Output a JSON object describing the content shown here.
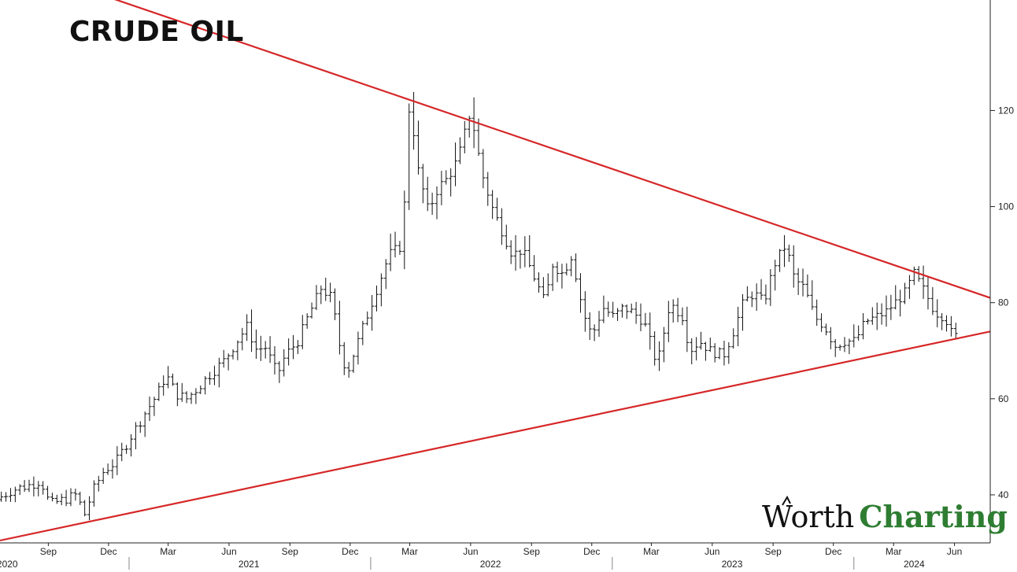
{
  "chart_data": {
    "type": "ohlc",
    "title": "CRUDE OIL",
    "y_axis": {
      "position": "right",
      "ticks": [
        40,
        60,
        80,
        100,
        120
      ],
      "ylim": [
        30,
        143
      ]
    },
    "x_axis": {
      "month_ticks": [
        {
          "label": "Sep",
          "date": "2020-09-01"
        },
        {
          "label": "Dec",
          "date": "2020-12-01"
        },
        {
          "label": "Mar",
          "date": "2021-03-01"
        },
        {
          "label": "Jun",
          "date": "2021-06-01"
        },
        {
          "label": "Sep",
          "date": "2021-09-01"
        },
        {
          "label": "Dec",
          "date": "2021-12-01"
        },
        {
          "label": "Mar",
          "date": "2022-03-01"
        },
        {
          "label": "Jun",
          "date": "2022-06-01"
        },
        {
          "label": "Sep",
          "date": "2022-09-01"
        },
        {
          "label": "Dec",
          "date": "2022-12-01"
        },
        {
          "label": "Mar",
          "date": "2023-03-01"
        },
        {
          "label": "Jun",
          "date": "2023-06-01"
        },
        {
          "label": "Sep",
          "date": "2023-09-01"
        },
        {
          "label": "Dec",
          "date": "2023-12-01"
        },
        {
          "label": "Mar",
          "date": "2024-03-01"
        },
        {
          "label": "Jun",
          "date": "2024-06-01"
        }
      ],
      "years": [
        {
          "label": "2020",
          "date": "2020-07-01"
        },
        {
          "label": "2021",
          "date": "2021-07-01"
        },
        {
          "label": "2022",
          "date": "2022-07-01"
        },
        {
          "label": "2023",
          "date": "2023-07-01"
        },
        {
          "label": "2024",
          "date": "2024-04-01"
        }
      ],
      "xlim": [
        "2020-06-20",
        "2024-07-25"
      ]
    },
    "price_points": [
      [
        "2020-06-22",
        39
      ],
      [
        "2020-07-15",
        41
      ],
      [
        "2020-08-10",
        42
      ],
      [
        "2020-08-28",
        43
      ],
      [
        "2020-09-10",
        38
      ],
      [
        "2020-10-01",
        39
      ],
      [
        "2020-10-20",
        40
      ],
      [
        "2020-11-02",
        36
      ],
      [
        "2020-11-15",
        41
      ],
      [
        "2020-12-01",
        45
      ],
      [
        "2020-12-20",
        47
      ],
      [
        "2021-01-10",
        52
      ],
      [
        "2021-02-01",
        57
      ],
      [
        "2021-02-20",
        61
      ],
      [
        "2021-03-05",
        65
      ],
      [
        "2021-03-20",
        61
      ],
      [
        "2021-04-05",
        60
      ],
      [
        "2021-04-20",
        62
      ],
      [
        "2021-05-10",
        65
      ],
      [
        "2021-06-01",
        68
      ],
      [
        "2021-06-20",
        72
      ],
      [
        "2021-07-05",
        75
      ],
      [
        "2021-07-20",
        70
      ],
      [
        "2021-08-01",
        71
      ],
      [
        "2021-08-20",
        65
      ],
      [
        "2021-09-01",
        69
      ],
      [
        "2021-09-20",
        72
      ],
      [
        "2021-10-05",
        77
      ],
      [
        "2021-10-25",
        83
      ],
      [
        "2021-11-10",
        81
      ],
      [
        "2021-11-26",
        68
      ],
      [
        "2021-12-05",
        66
      ],
      [
        "2021-12-25",
        74
      ],
      [
        "2022-01-15",
        82
      ],
      [
        "2022-02-05",
        90
      ],
      [
        "2022-02-25",
        92
      ],
      [
        "2022-03-08",
        123
      ],
      [
        "2022-03-20",
        108
      ],
      [
        "2022-04-05",
        99
      ],
      [
        "2022-04-20",
        104
      ],
      [
        "2022-05-05",
        106
      ],
      [
        "2022-05-20",
        110
      ],
      [
        "2022-06-08",
        120
      ],
      [
        "2022-06-25",
        107
      ],
      [
        "2022-07-10",
        100
      ],
      [
        "2022-07-25",
        95
      ],
      [
        "2022-08-10",
        90
      ],
      [
        "2022-08-25",
        91
      ],
      [
        "2022-09-10",
        86
      ],
      [
        "2022-09-28",
        80
      ],
      [
        "2022-10-10",
        88
      ],
      [
        "2022-10-25",
        86
      ],
      [
        "2022-11-08",
        90
      ],
      [
        "2022-11-25",
        78
      ],
      [
        "2022-12-08",
        73
      ],
      [
        "2022-12-25",
        79
      ],
      [
        "2023-01-10",
        77
      ],
      [
        "2023-01-25",
        79
      ],
      [
        "2023-02-08",
        78
      ],
      [
        "2023-02-25",
        76
      ],
      [
        "2023-03-17",
        67
      ],
      [
        "2023-04-05",
        80
      ],
      [
        "2023-04-25",
        77
      ],
      [
        "2023-05-05",
        70
      ],
      [
        "2023-05-20",
        72
      ],
      [
        "2023-06-05",
        70
      ],
      [
        "2023-06-25",
        69
      ],
      [
        "2023-07-10",
        74
      ],
      [
        "2023-07-25",
        80
      ],
      [
        "2023-08-10",
        82
      ],
      [
        "2023-08-25",
        80
      ],
      [
        "2023-09-10",
        88
      ],
      [
        "2023-09-27",
        92
      ],
      [
        "2023-10-10",
        85
      ],
      [
        "2023-10-25",
        83
      ],
      [
        "2023-11-10",
        77
      ],
      [
        "2023-11-25",
        75
      ],
      [
        "2023-12-10",
        71
      ],
      [
        "2023-12-25",
        72
      ],
      [
        "2024-01-10",
        72
      ],
      [
        "2024-01-25",
        76
      ],
      [
        "2024-02-10",
        77
      ],
      [
        "2024-02-25",
        78
      ],
      [
        "2024-03-10",
        80
      ],
      [
        "2024-03-25",
        82
      ],
      [
        "2024-04-08",
        86
      ],
      [
        "2024-04-25",
        82
      ],
      [
        "2024-05-10",
        78
      ],
      [
        "2024-05-25",
        77
      ],
      [
        "2024-06-05",
        73
      ]
    ],
    "trendlines": {
      "color": "#d62728",
      "upper": {
        "from": [
          "2020-11-01",
          145
        ],
        "to": [
          "2024-07-25",
          81
        ]
      },
      "lower": {
        "from": [
          "2020-06-20",
          30.5
        ],
        "to": [
          "2024-07-25",
          74
        ]
      }
    },
    "bar_color": "#111111"
  },
  "logo": {
    "part1": "Worth",
    "part2": "Charting"
  }
}
